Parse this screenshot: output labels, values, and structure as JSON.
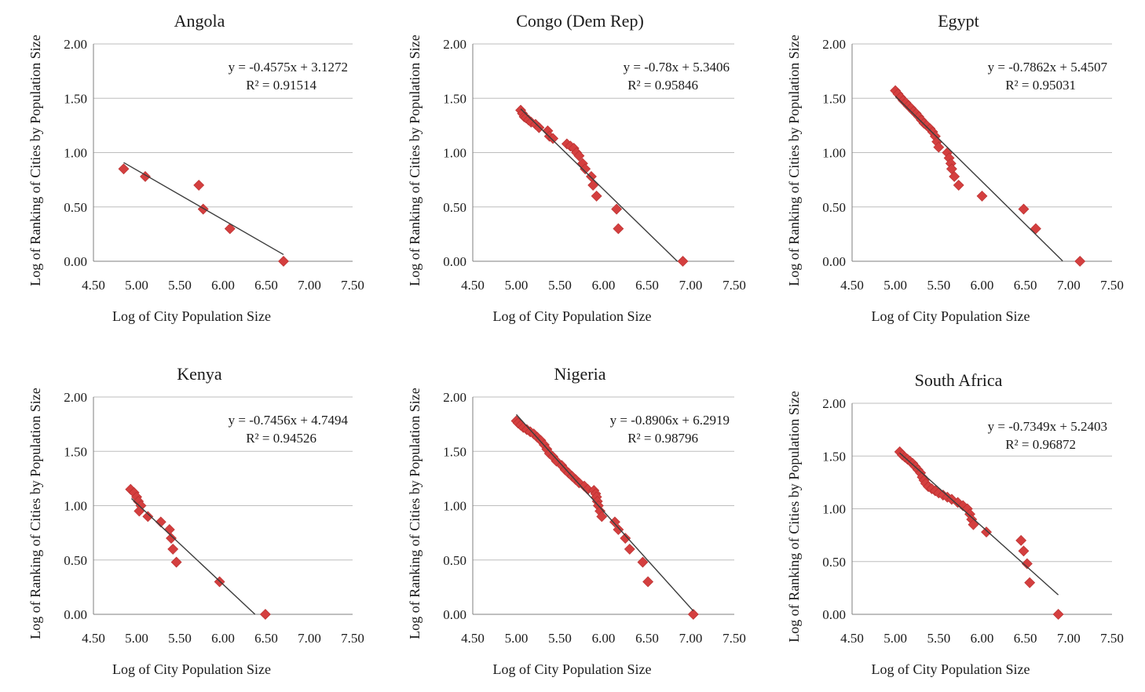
{
  "chart_data": [
    {
      "type": "scatter",
      "title": "Angola",
      "xlabel": "Log of City Population Size",
      "ylabel": "Log of Ranking of Cities by Population Size",
      "xlim": [
        4.5,
        7.5
      ],
      "ylim": [
        0,
        2
      ],
      "x_ticks": [
        "4.50",
        "5.00",
        "5.50",
        "6.00",
        "6.50",
        "7.00",
        "7.50"
      ],
      "y_ticks": [
        "0.00",
        "0.50",
        "1.00",
        "1.50",
        "2.00"
      ],
      "grid": "horizontal",
      "marker_color": "#d43f3f",
      "trendline": {
        "slope": -0.4575,
        "intercept": 3.1272,
        "x_range": [
          4.85,
          6.7
        ]
      },
      "equation": "y = -0.4575x + 3.1272",
      "r_squared": "R² = 0.91514",
      "points": [
        [
          4.85,
          0.85
        ],
        [
          5.1,
          0.78
        ],
        [
          5.72,
          0.7
        ],
        [
          5.77,
          0.48
        ],
        [
          6.08,
          0.3
        ],
        [
          6.7,
          0.0
        ]
      ]
    },
    {
      "type": "scatter",
      "title": "Congo (Dem Rep)",
      "xlabel": "Log of City Population Size",
      "ylabel": "Log of Ranking of Cities by Population Size",
      "xlim": [
        4.5,
        7.5
      ],
      "ylim": [
        0,
        2
      ],
      "x_ticks": [
        "4.50",
        "5.00",
        "5.50",
        "6.00",
        "6.50",
        "7.00",
        "7.50"
      ],
      "y_ticks": [
        "0.00",
        "0.50",
        "1.00",
        "1.50",
        "2.00"
      ],
      "grid": "horizontal",
      "marker_color": "#d43f3f",
      "trendline": {
        "slope": -0.78,
        "intercept": 5.3406,
        "x_range": [
          5.05,
          6.85
        ]
      },
      "equation": "y = -0.78x + 5.3406",
      "r_squared": "R² = 0.95846",
      "points": [
        [
          5.05,
          1.39
        ],
        [
          5.07,
          1.36
        ],
        [
          5.09,
          1.33
        ],
        [
          5.11,
          1.32
        ],
        [
          5.14,
          1.3
        ],
        [
          5.17,
          1.28
        ],
        [
          5.22,
          1.26
        ],
        [
          5.26,
          1.23
        ],
        [
          5.36,
          1.2
        ],
        [
          5.38,
          1.15
        ],
        [
          5.42,
          1.13
        ],
        [
          5.58,
          1.08
        ],
        [
          5.62,
          1.06
        ],
        [
          5.66,
          1.04
        ],
        [
          5.69,
          1.0
        ],
        [
          5.72,
          0.97
        ],
        [
          5.76,
          0.9
        ],
        [
          5.79,
          0.85
        ],
        [
          5.86,
          0.78
        ],
        [
          5.88,
          0.7
        ],
        [
          5.92,
          0.6
        ],
        [
          6.15,
          0.48
        ],
        [
          6.17,
          0.3
        ],
        [
          6.91,
          0.0
        ]
      ]
    },
    {
      "type": "scatter",
      "title": "Egypt",
      "xlabel": "Log of City Population Size",
      "ylabel": "Log of Ranking of Cities by Population Size",
      "xlim": [
        4.5,
        7.5
      ],
      "ylim": [
        0,
        2
      ],
      "x_ticks": [
        "4.50",
        "5.00",
        "5.50",
        "6.00",
        "6.50",
        "7.00",
        "7.50"
      ],
      "y_ticks": [
        "0.00",
        "0.50",
        "1.00",
        "1.50",
        "2.00"
      ],
      "grid": "horizontal",
      "marker_color": "#d43f3f",
      "trendline": {
        "slope": -0.7862,
        "intercept": 5.4507,
        "x_range": [
          5.0,
          6.93
        ]
      },
      "equation": "y = -0.7862x + 5.4507",
      "r_squared": "R² = 0.95031",
      "points": [
        [
          5.0,
          1.57
        ],
        [
          5.03,
          1.54
        ],
        [
          5.06,
          1.51
        ],
        [
          5.09,
          1.48
        ],
        [
          5.12,
          1.46
        ],
        [
          5.15,
          1.43
        ],
        [
          5.18,
          1.41
        ],
        [
          5.21,
          1.38
        ],
        [
          5.24,
          1.36
        ],
        [
          5.27,
          1.33
        ],
        [
          5.3,
          1.3
        ],
        [
          5.33,
          1.27
        ],
        [
          5.36,
          1.25
        ],
        [
          5.4,
          1.22
        ],
        [
          5.43,
          1.19
        ],
        [
          5.46,
          1.15
        ],
        [
          5.48,
          1.1
        ],
        [
          5.5,
          1.05
        ],
        [
          5.6,
          1.0
        ],
        [
          5.62,
          0.95
        ],
        [
          5.64,
          0.9
        ],
        [
          5.65,
          0.85
        ],
        [
          5.68,
          0.78
        ],
        [
          5.73,
          0.7
        ],
        [
          6.0,
          0.6
        ],
        [
          6.48,
          0.48
        ],
        [
          6.62,
          0.3
        ],
        [
          7.13,
          0.0
        ]
      ]
    },
    {
      "type": "scatter",
      "title": "Kenya",
      "xlabel": "Log of City Population Size",
      "ylabel": "Log of Ranking of Cities by Population Size",
      "xlim": [
        4.5,
        7.5
      ],
      "ylim": [
        0,
        2
      ],
      "x_ticks": [
        "4.50",
        "5.00",
        "5.50",
        "6.00",
        "6.50",
        "7.00",
        "7.50"
      ],
      "y_ticks": [
        "0.00",
        "0.50",
        "1.00",
        "1.50",
        "2.00"
      ],
      "grid": "horizontal",
      "marker_color": "#d43f3f",
      "trendline": {
        "slope": -0.7456,
        "intercept": 4.7494,
        "x_range": [
          4.94,
          6.37
        ]
      },
      "equation": "y = -0.7456x + 4.7494",
      "r_squared": "R² = 0.94526",
      "points": [
        [
          4.93,
          1.15
        ],
        [
          4.97,
          1.12
        ],
        [
          5.0,
          1.08
        ],
        [
          5.02,
          1.04
        ],
        [
          5.05,
          1.0
        ],
        [
          5.03,
          0.95
        ],
        [
          5.13,
          0.9
        ],
        [
          5.28,
          0.85
        ],
        [
          5.38,
          0.78
        ],
        [
          5.4,
          0.7
        ],
        [
          5.42,
          0.6
        ],
        [
          5.46,
          0.48
        ],
        [
          5.96,
          0.3
        ],
        [
          6.49,
          0.0
        ]
      ]
    },
    {
      "type": "scatter",
      "title": "Nigeria",
      "xlabel": "Log of City Population Size",
      "ylabel": "Log of Ranking of Cities by Population Size",
      "xlim": [
        4.5,
        7.5
      ],
      "ylim": [
        0,
        2
      ],
      "x_ticks": [
        "4.50",
        "5.00",
        "5.50",
        "6.00",
        "6.50",
        "7.00",
        "7.50"
      ],
      "y_ticks": [
        "0.00",
        "0.50",
        "1.00",
        "1.50",
        "2.00"
      ],
      "grid": "horizontal",
      "marker_color": "#d43f3f",
      "trendline": {
        "slope": -0.8906,
        "intercept": 6.2919,
        "x_range": [
          5.0,
          7.03
        ]
      },
      "equation": "y = -0.8906x + 6.2919",
      "r_squared": "R² = 0.98796",
      "points": [
        [
          5.0,
          1.78
        ],
        [
          5.02,
          1.76
        ],
        [
          5.05,
          1.74
        ],
        [
          5.08,
          1.72
        ],
        [
          5.12,
          1.7
        ],
        [
          5.16,
          1.68
        ],
        [
          5.2,
          1.66
        ],
        [
          5.24,
          1.63
        ],
        [
          5.28,
          1.6
        ],
        [
          5.32,
          1.56
        ],
        [
          5.35,
          1.52
        ],
        [
          5.38,
          1.48
        ],
        [
          5.42,
          1.45
        ],
        [
          5.46,
          1.41
        ],
        [
          5.52,
          1.37
        ],
        [
          5.56,
          1.33
        ],
        [
          5.6,
          1.3
        ],
        [
          5.64,
          1.27
        ],
        [
          5.68,
          1.24
        ],
        [
          5.72,
          1.21
        ],
        [
          5.78,
          1.18
        ],
        [
          5.82,
          1.15
        ],
        [
          5.89,
          1.14
        ],
        [
          5.91,
          1.11
        ],
        [
          5.92,
          1.08
        ],
        [
          5.93,
          1.04
        ],
        [
          5.94,
          1.0
        ],
        [
          5.96,
          0.95
        ],
        [
          5.98,
          0.9
        ],
        [
          6.13,
          0.85
        ],
        [
          6.17,
          0.78
        ],
        [
          6.25,
          0.7
        ],
        [
          6.3,
          0.6
        ],
        [
          6.45,
          0.48
        ],
        [
          6.51,
          0.3
        ],
        [
          7.03,
          0.0
        ]
      ]
    },
    {
      "type": "scatter",
      "title": "South Africa",
      "xlabel": "Log of City Population Size",
      "ylabel": "Log of Ranking of Cities by Population Size",
      "xlim": [
        4.5,
        7.5
      ],
      "ylim": [
        0,
        2
      ],
      "x_ticks": [
        "4.50",
        "5.00",
        "5.50",
        "6.00",
        "6.50",
        "7.00",
        "7.50"
      ],
      "y_ticks": [
        "0.00",
        "0.50",
        "1.00",
        "1.50",
        "2.00"
      ],
      "grid": "horizontal",
      "marker_color": "#d43f3f",
      "trendline": {
        "slope": -0.7349,
        "intercept": 5.2403,
        "x_range": [
          5.05,
          6.88
        ]
      },
      "equation": "y = -0.7349x + 5.2403",
      "r_squared": "R² = 0.96872",
      "points": [
        [
          5.05,
          1.54
        ],
        [
          5.08,
          1.51
        ],
        [
          5.11,
          1.49
        ],
        [
          5.14,
          1.47
        ],
        [
          5.17,
          1.45
        ],
        [
          5.2,
          1.43
        ],
        [
          5.23,
          1.4
        ],
        [
          5.26,
          1.37
        ],
        [
          5.29,
          1.34
        ],
        [
          5.31,
          1.3
        ],
        [
          5.33,
          1.27
        ],
        [
          5.35,
          1.24
        ],
        [
          5.38,
          1.21
        ],
        [
          5.42,
          1.19
        ],
        [
          5.46,
          1.17
        ],
        [
          5.5,
          1.15
        ],
        [
          5.55,
          1.13
        ],
        [
          5.6,
          1.11
        ],
        [
          5.65,
          1.09
        ],
        [
          5.72,
          1.06
        ],
        [
          5.78,
          1.03
        ],
        [
          5.83,
          1.0
        ],
        [
          5.86,
          0.95
        ],
        [
          5.88,
          0.9
        ],
        [
          5.9,
          0.85
        ],
        [
          6.05,
          0.78
        ],
        [
          6.45,
          0.7
        ],
        [
          6.48,
          0.6
        ],
        [
          6.52,
          0.48
        ],
        [
          6.55,
          0.3
        ],
        [
          6.88,
          0.0
        ]
      ]
    }
  ]
}
